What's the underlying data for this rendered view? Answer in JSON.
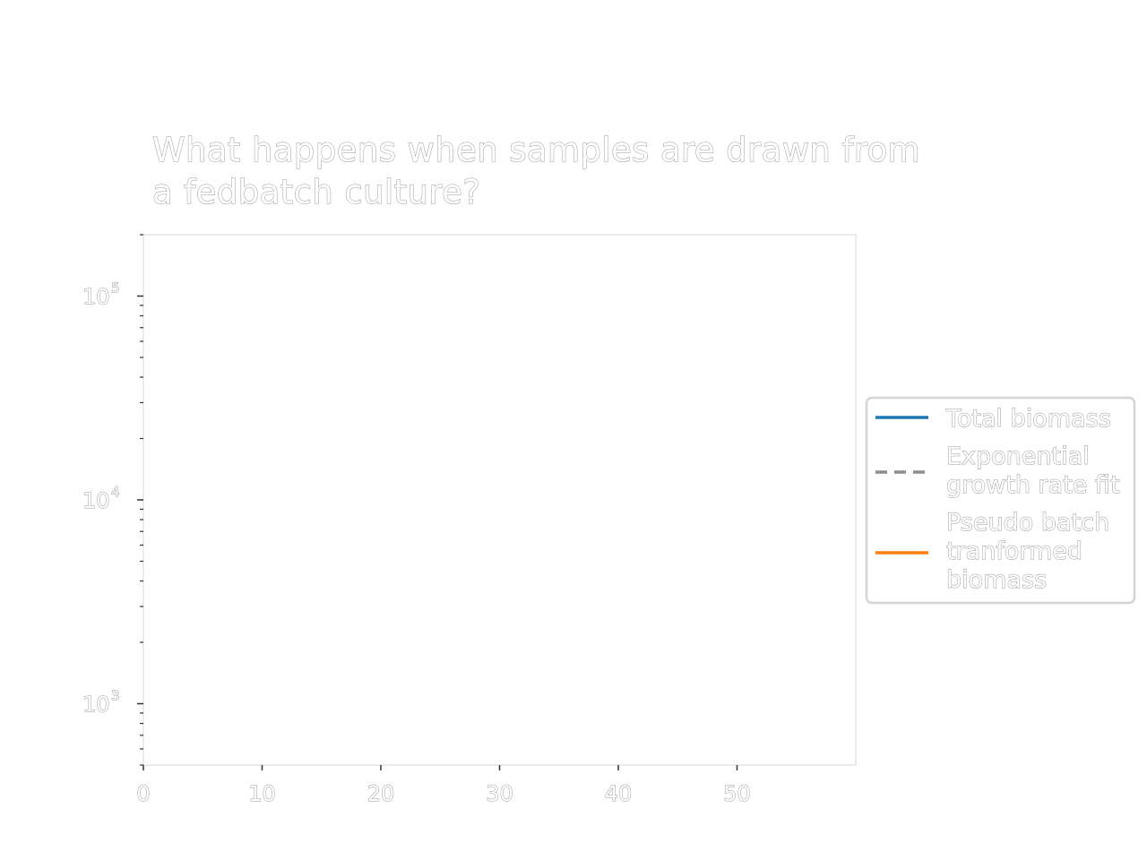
{
  "chart_data": {
    "type": "line",
    "title": "What happens when samples are drawn from a fedbatch culture?",
    "title_lines": [
      "What happens when samples are drawn from",
      "a fedbatch culture?"
    ],
    "xlabel": "",
    "ylabel": "",
    "xlim": [
      0,
      60
    ],
    "ylim": [
      500,
      200000
    ],
    "yscale": "log",
    "x_ticks": [
      0,
      10,
      20,
      30,
      40,
      50
    ],
    "x_tick_labels": [
      "0",
      "10",
      "20",
      "30",
      "40",
      "50"
    ],
    "y_ticks": [
      1000,
      10000,
      100000
    ],
    "y_tick_labels": [
      {
        "base": "10",
        "exp": "3"
      },
      {
        "base": "10",
        "exp": "4"
      },
      {
        "base": "10",
        "exp": "5"
      }
    ],
    "grid": false,
    "legend_position": "right-outside",
    "series": [
      {
        "name": "Total biomass",
        "color": "#1f77b4",
        "linestyle": "solid",
        "x": [],
        "y": []
      },
      {
        "name": "Exponential growth rate fit",
        "color": "#8c8c8c",
        "linestyle": "dashed",
        "x": [],
        "y": []
      },
      {
        "name": "Pseudo batch tranformed biomass",
        "color": "#ff7f0e",
        "linestyle": "solid",
        "x": [],
        "y": []
      }
    ],
    "legend_lines": [
      [
        "Total biomass"
      ],
      [
        "Exponential",
        "growth rate fit"
      ],
      [
        "Pseudo batch",
        "tranformed",
        "biomass"
      ]
    ]
  }
}
